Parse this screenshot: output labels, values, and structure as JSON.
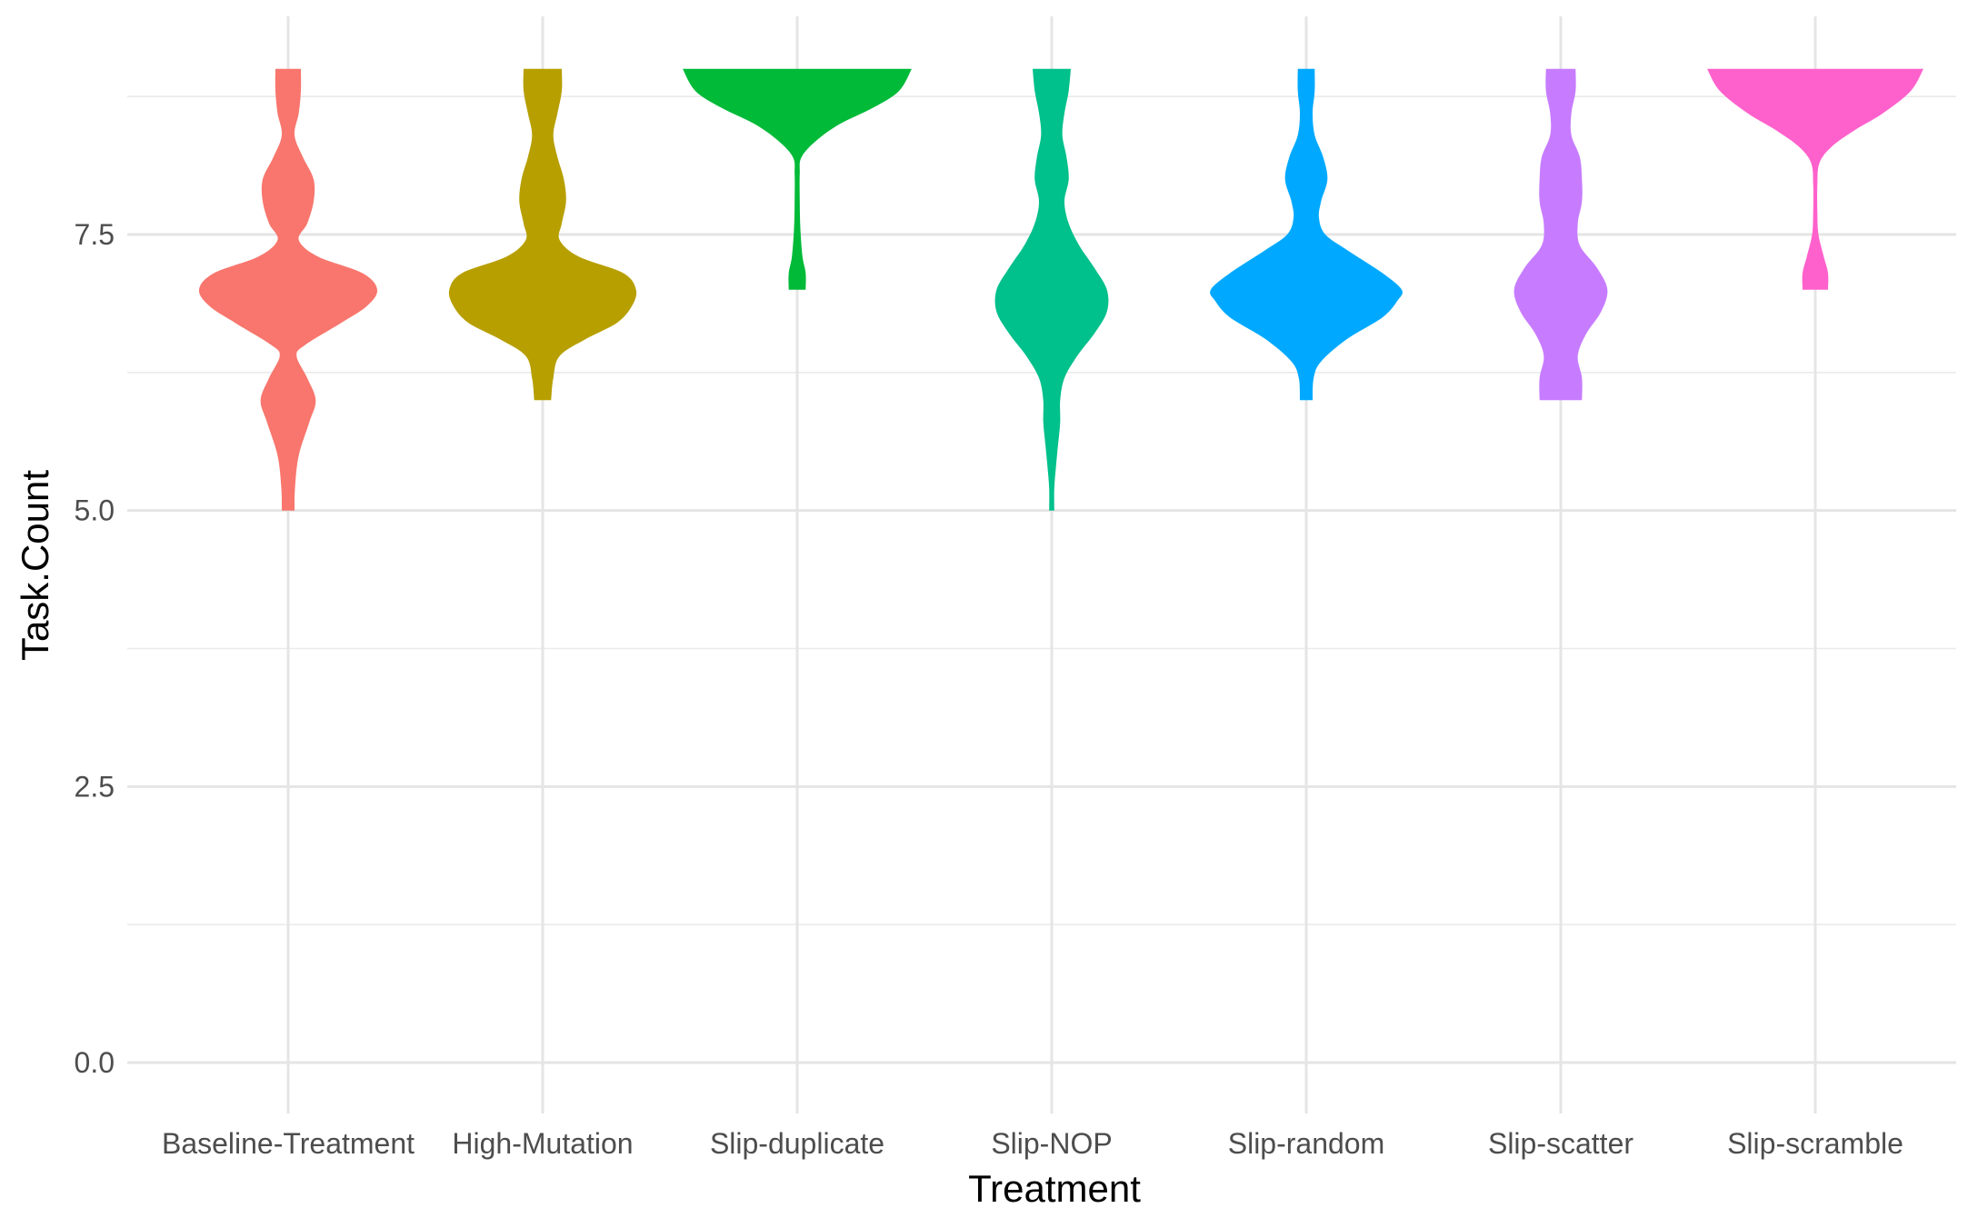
{
  "chart_data": {
    "type": "violin",
    "title": "",
    "xlabel": "Treatment",
    "ylabel": "Task.Count",
    "ylim": [
      -0.4,
      9.45
    ],
    "grid": true,
    "legend": "none",
    "y_ticks": [
      0.0,
      2.5,
      5.0,
      7.5
    ],
    "y_tick_labels": [
      "0.0",
      "2.5",
      "5.0",
      "7.5"
    ],
    "y_minor_ticks": [
      1.25,
      3.75,
      6.25,
      8.75
    ],
    "categories": [
      "Baseline-Treatment",
      "High-Mutation",
      "Slip-duplicate",
      "Slip-NOP",
      "Slip-random",
      "Slip-scatter",
      "Slip-scramble"
    ],
    "series": [
      {
        "category": "Baseline-Treatment",
        "color": "#F8766D",
        "profile": [
          [
            5.0,
            0.03
          ],
          [
            5.2,
            0.032
          ],
          [
            5.5,
            0.05
          ],
          [
            5.8,
            0.1
          ],
          [
            6.0,
            0.13
          ],
          [
            6.2,
            0.09
          ],
          [
            6.4,
            0.04
          ],
          [
            6.5,
            0.08
          ],
          [
            6.7,
            0.25
          ],
          [
            6.85,
            0.37
          ],
          [
            7.0,
            0.42
          ],
          [
            7.15,
            0.35
          ],
          [
            7.3,
            0.14
          ],
          [
            7.45,
            0.05
          ],
          [
            7.6,
            0.09
          ],
          [
            7.8,
            0.12
          ],
          [
            8.0,
            0.12
          ],
          [
            8.2,
            0.07
          ],
          [
            8.4,
            0.03
          ],
          [
            8.6,
            0.05
          ],
          [
            8.8,
            0.06
          ],
          [
            9.0,
            0.06
          ]
        ]
      },
      {
        "category": "High-Mutation",
        "color": "#B79F00",
        "profile": [
          [
            6.0,
            0.04
          ],
          [
            6.2,
            0.05
          ],
          [
            6.4,
            0.08
          ],
          [
            6.55,
            0.2
          ],
          [
            6.7,
            0.35
          ],
          [
            6.85,
            0.42
          ],
          [
            7.0,
            0.44
          ],
          [
            7.15,
            0.38
          ],
          [
            7.3,
            0.17
          ],
          [
            7.45,
            0.08
          ],
          [
            7.6,
            0.09
          ],
          [
            7.8,
            0.11
          ],
          [
            8.0,
            0.1
          ],
          [
            8.2,
            0.07
          ],
          [
            8.4,
            0.05
          ],
          [
            8.6,
            0.07
          ],
          [
            8.8,
            0.09
          ],
          [
            9.0,
            0.09
          ]
        ]
      },
      {
        "category": "Slip-duplicate",
        "color": "#00BA38",
        "profile": [
          [
            7.0,
            0.04
          ],
          [
            7.15,
            0.04
          ],
          [
            7.3,
            0.025
          ],
          [
            7.55,
            0.015
          ],
          [
            7.8,
            0.012
          ],
          [
            8.05,
            0.012
          ],
          [
            8.2,
            0.02
          ],
          [
            8.35,
            0.09
          ],
          [
            8.5,
            0.2
          ],
          [
            8.65,
            0.36
          ],
          [
            8.8,
            0.48
          ],
          [
            9.0,
            0.54
          ]
        ]
      },
      {
        "category": "Slip-NOP",
        "color": "#00C08B",
        "profile": [
          [
            5.0,
            0.012
          ],
          [
            5.2,
            0.012
          ],
          [
            5.4,
            0.02
          ],
          [
            5.6,
            0.03
          ],
          [
            5.8,
            0.04
          ],
          [
            6.0,
            0.04
          ],
          [
            6.2,
            0.06
          ],
          [
            6.4,
            0.12
          ],
          [
            6.6,
            0.2
          ],
          [
            6.8,
            0.26
          ],
          [
            7.0,
            0.26
          ],
          [
            7.2,
            0.2
          ],
          [
            7.4,
            0.13
          ],
          [
            7.6,
            0.08
          ],
          [
            7.8,
            0.06
          ],
          [
            8.0,
            0.08
          ],
          [
            8.2,
            0.07
          ],
          [
            8.4,
            0.05
          ],
          [
            8.6,
            0.06
          ],
          [
            8.8,
            0.08
          ],
          [
            9.0,
            0.09
          ]
        ]
      },
      {
        "category": "Slip-random",
        "color": "#00A9FF",
        "profile": [
          [
            6.0,
            0.03
          ],
          [
            6.2,
            0.035
          ],
          [
            6.35,
            0.07
          ],
          [
            6.55,
            0.19
          ],
          [
            6.75,
            0.36
          ],
          [
            6.9,
            0.43
          ],
          [
            7.0,
            0.45
          ],
          [
            7.15,
            0.36
          ],
          [
            7.35,
            0.2
          ],
          [
            7.5,
            0.09
          ],
          [
            7.65,
            0.06
          ],
          [
            7.8,
            0.07
          ],
          [
            8.0,
            0.1
          ],
          [
            8.2,
            0.08
          ],
          [
            8.4,
            0.04
          ],
          [
            8.6,
            0.03
          ],
          [
            8.8,
            0.04
          ],
          [
            9.0,
            0.04
          ]
        ]
      },
      {
        "category": "Slip-scatter",
        "color": "#C77CFF",
        "profile": [
          [
            6.0,
            0.1
          ],
          [
            6.2,
            0.1
          ],
          [
            6.4,
            0.08
          ],
          [
            6.6,
            0.12
          ],
          [
            6.8,
            0.19
          ],
          [
            7.0,
            0.22
          ],
          [
            7.2,
            0.17
          ],
          [
            7.4,
            0.09
          ],
          [
            7.6,
            0.08
          ],
          [
            7.8,
            0.1
          ],
          [
            8.0,
            0.1
          ],
          [
            8.2,
            0.09
          ],
          [
            8.4,
            0.05
          ],
          [
            8.6,
            0.05
          ],
          [
            8.8,
            0.07
          ],
          [
            9.0,
            0.07
          ]
        ]
      },
      {
        "category": "Slip-scramble",
        "color": "#FF61CC",
        "profile": [
          [
            7.0,
            0.06
          ],
          [
            7.15,
            0.06
          ],
          [
            7.3,
            0.04
          ],
          [
            7.5,
            0.015
          ],
          [
            7.7,
            0.01
          ],
          [
            7.95,
            0.01
          ],
          [
            8.15,
            0.02
          ],
          [
            8.3,
            0.08
          ],
          [
            8.45,
            0.19
          ],
          [
            8.6,
            0.32
          ],
          [
            8.8,
            0.45
          ],
          [
            9.0,
            0.51
          ]
        ]
      }
    ]
  }
}
